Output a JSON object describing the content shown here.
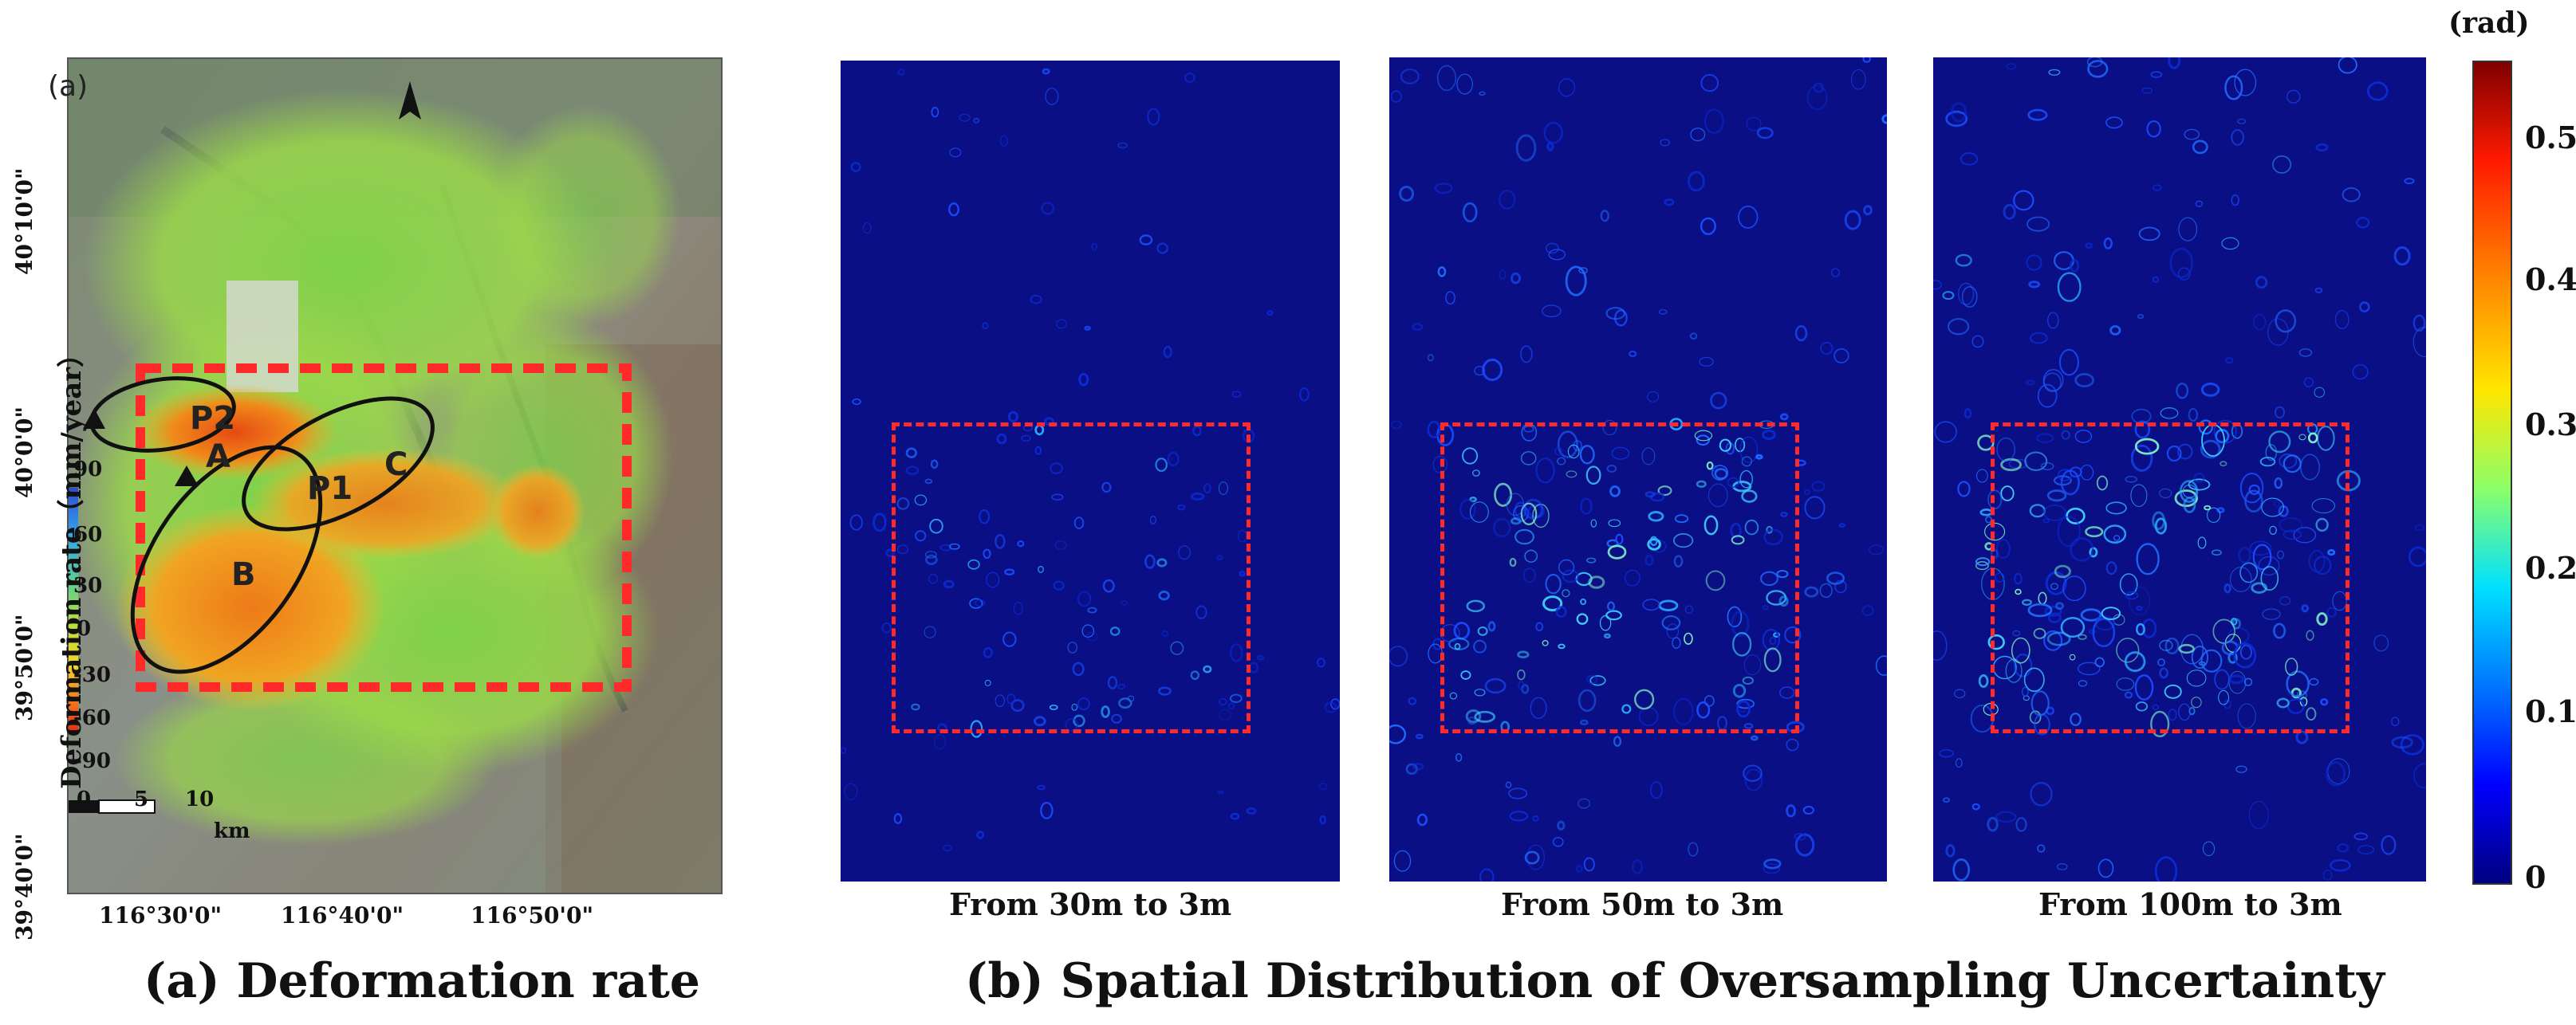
{
  "map_panel": {
    "panel_tag": "(a)",
    "lat_ticks": [
      "40°10'0\"",
      "40°0'0\"",
      "39°50'0\"",
      "39°40'0\""
    ],
    "lon_ticks": [
      "116°30'0\"",
      "116°40'0\"",
      "116°50'0\""
    ],
    "legend": {
      "title": "Deformation rate（mm/year）",
      "ticks": [
        "90",
        "60",
        "30",
        "0",
        "-30",
        "-60",
        "-90"
      ]
    },
    "scale_bar": {
      "ticks": [
        "0",
        "5",
        "10"
      ],
      "unit": "km"
    },
    "regions": [
      "A",
      "B",
      "C"
    ],
    "points": [
      "P1",
      "P2"
    ],
    "caption": "(a) Deformation rate"
  },
  "uncertainty_panels": [
    {
      "label": "From 30m to 3m",
      "intensity": 0.35
    },
    {
      "label": "From 50m to 3m",
      "intensity": 0.65
    },
    {
      "label": "From 100m to 3m",
      "intensity": 0.8
    }
  ],
  "colorbar": {
    "unit": "(rad)",
    "ticks": [
      "0.5",
      "0.4",
      "0.3",
      "0.2",
      "0.1",
      "0"
    ],
    "range": [
      0,
      0.55
    ]
  },
  "caption_b": "(b) Spatial Distribution of Oversampling Uncertainty",
  "colors": {
    "uncertainty_background": "#0a0f86",
    "roi_box": "#ff2a2a",
    "jet_high": "#7f0000",
    "jet_low": "#00007f"
  }
}
